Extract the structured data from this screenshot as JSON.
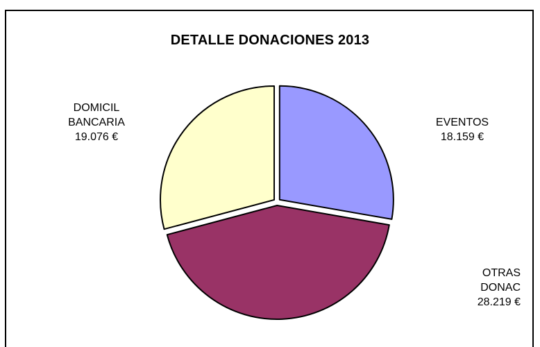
{
  "chart_data": {
    "type": "pie",
    "title": "DETALLE DONACIONES 2013",
    "unit": "€",
    "slices": [
      {
        "label_lines": [
          "EVENTOS"
        ],
        "value": 18159,
        "value_label": "18.159 €",
        "color": "#9999ff"
      },
      {
        "label_lines": [
          "OTRAS",
          "DONAC"
        ],
        "value": 28219,
        "value_label": "28.219 €",
        "color": "#993366"
      },
      {
        "label_lines": [
          "DOMICIL",
          "BANCARIA"
        ],
        "value": 19076,
        "value_label": "19.076 €",
        "color": "#ffffcc"
      }
    ],
    "exploded": true,
    "legend": "none"
  }
}
